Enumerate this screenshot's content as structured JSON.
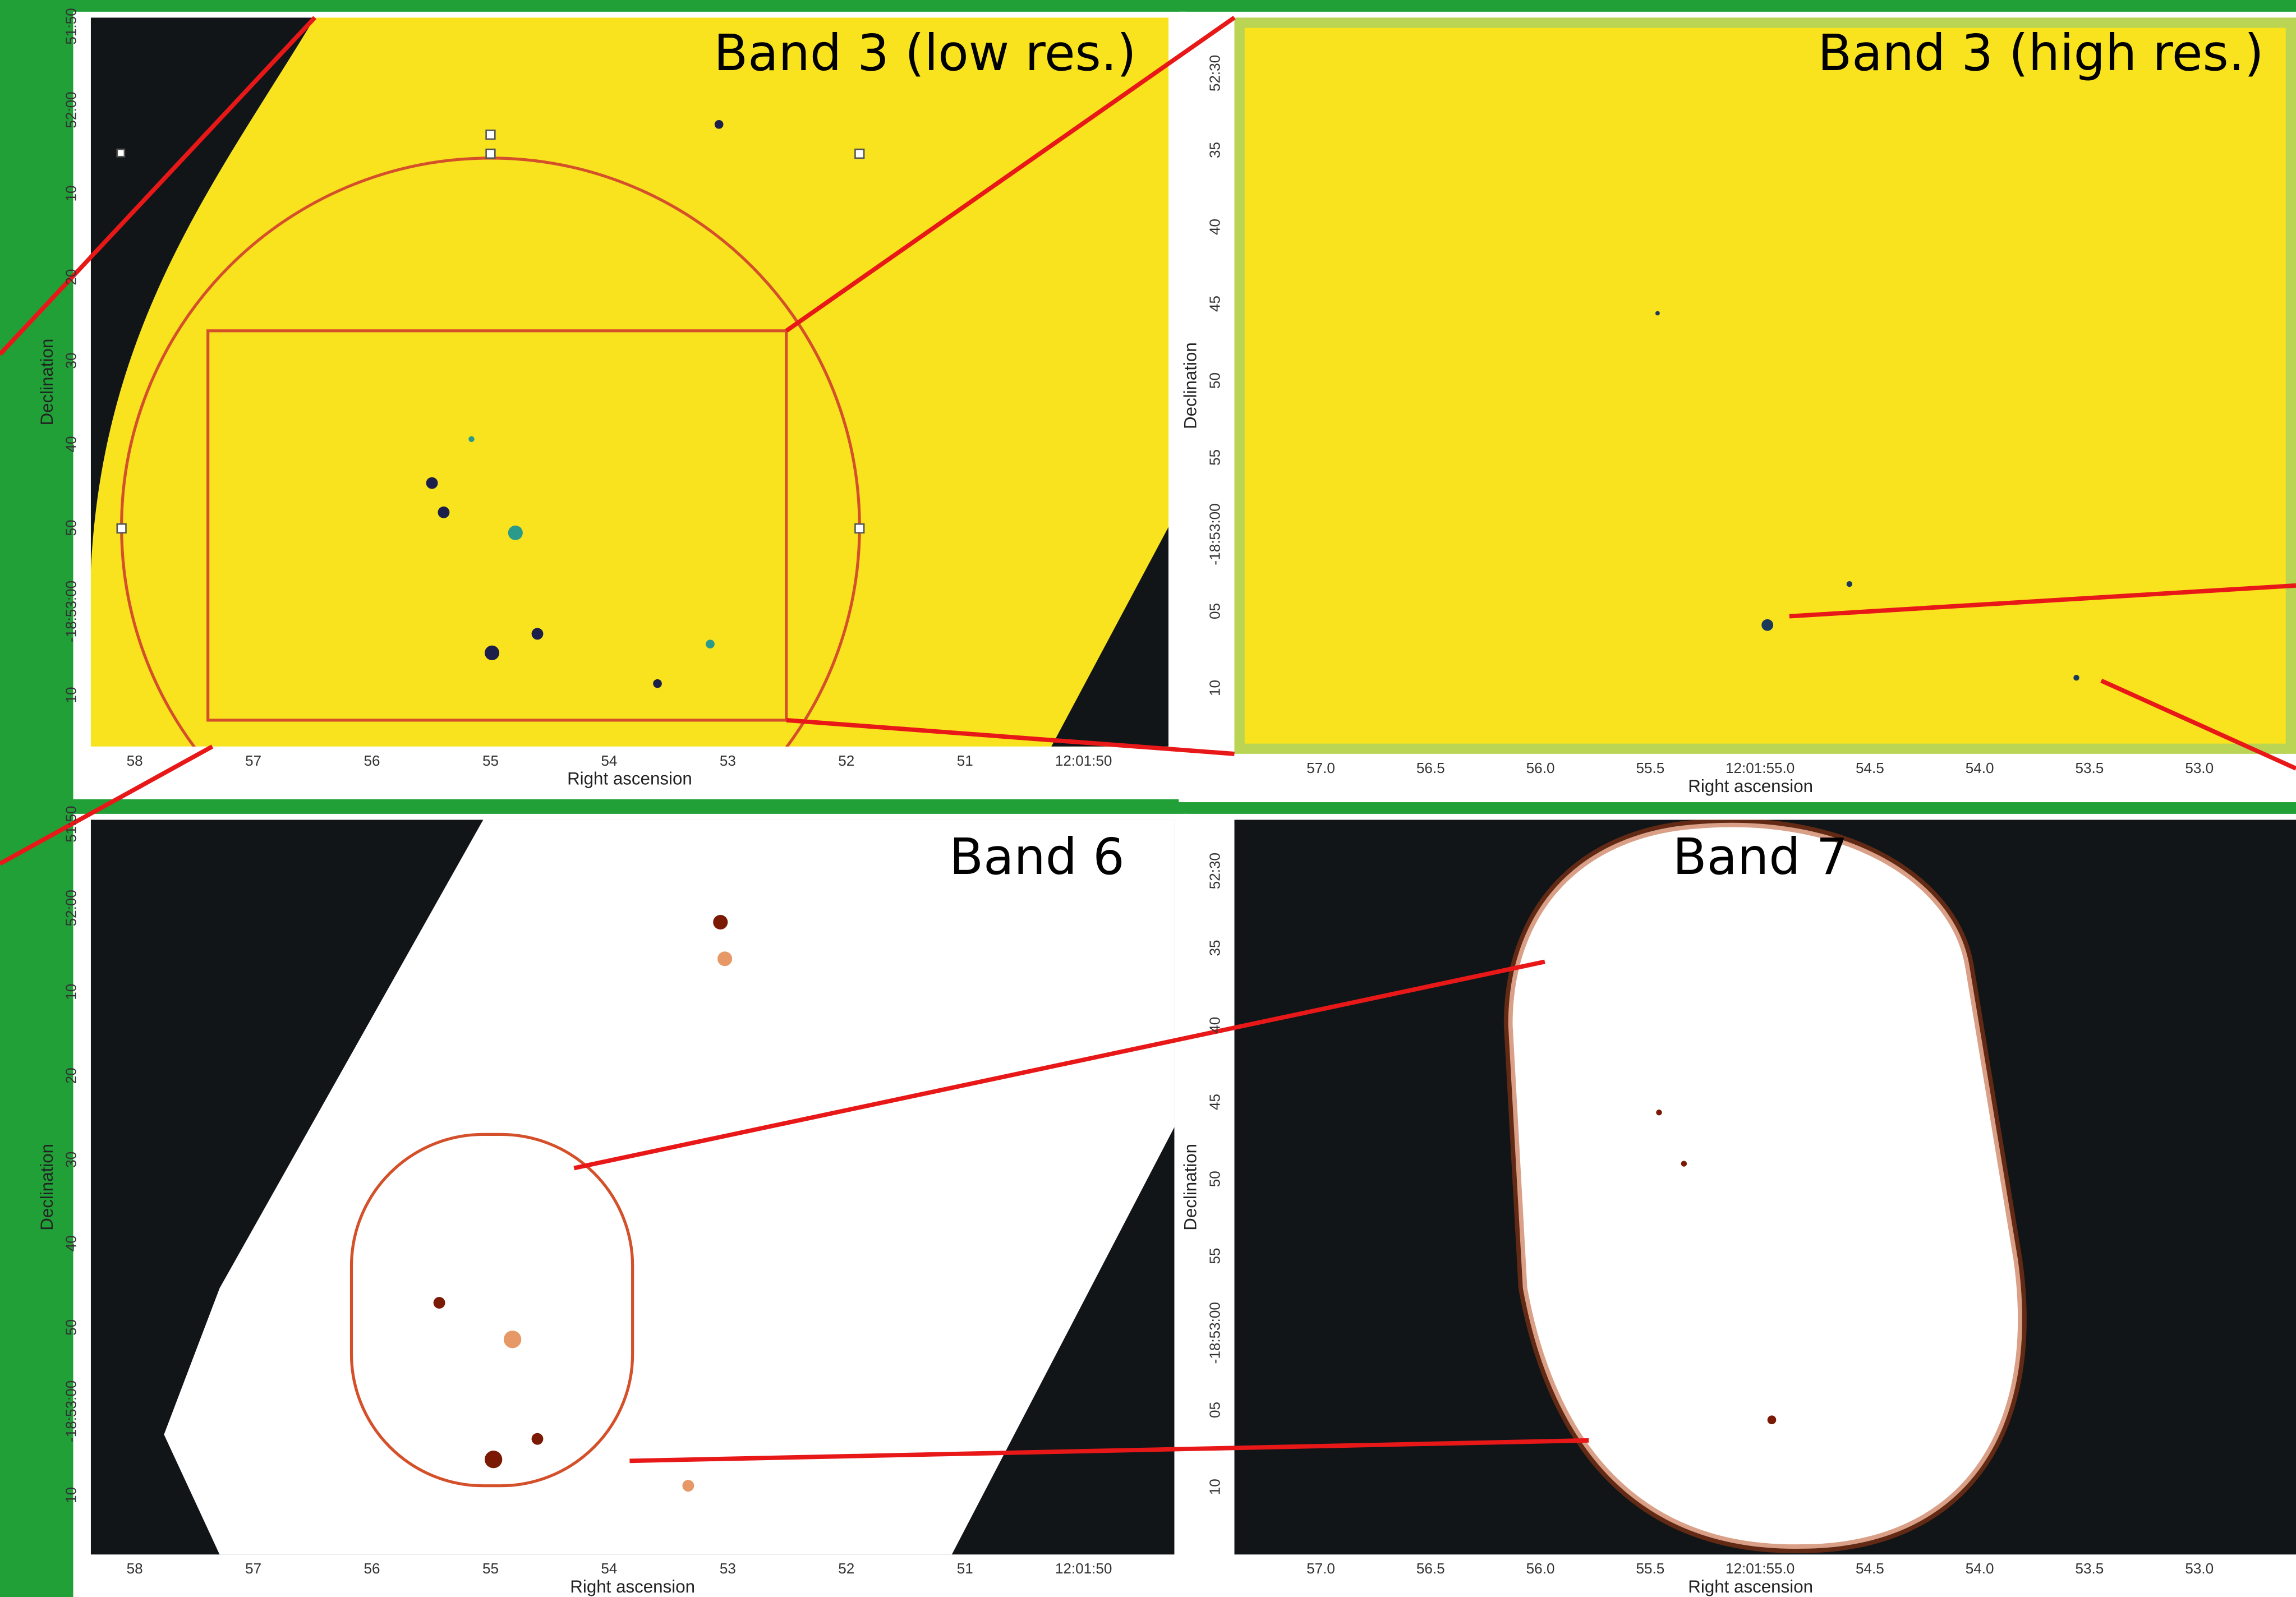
{
  "panels": [
    {
      "title": "Band 3 (low res.)",
      "x_label": "Right ascension",
      "y_label": "Declination",
      "x_ticks": [
        "58",
        "57",
        "56",
        "55",
        "54",
        "53",
        "52",
        "51",
        "12:01:50"
      ],
      "y_ticks": [
        "51:50",
        "52:00",
        "10",
        "20",
        "30",
        "40",
        "50",
        "-18:53:00",
        "10"
      ]
    },
    {
      "title": "Band 3 (high res.)",
      "x_label": "Right ascension",
      "y_label": "Declination",
      "x_ticks": [
        "57.0",
        "56.5",
        "56.0",
        "55.5",
        "12:01:55.0",
        "54.5",
        "54.0",
        "53.5",
        "53.0"
      ],
      "y_ticks": [
        "52:30",
        "35",
        "40",
        "45",
        "50",
        "55",
        "-18:53:00",
        "05",
        "10"
      ]
    },
    {
      "title": "Band 6",
      "x_label": "Right ascension",
      "y_label": "Declination",
      "x_ticks": [
        "58",
        "57",
        "56",
        "55",
        "54",
        "53",
        "52",
        "51",
        "12:01:50"
      ],
      "y_ticks": [
        "51:50",
        "52:00",
        "10",
        "20",
        "30",
        "40",
        "50",
        "-18:53:00",
        "10"
      ]
    },
    {
      "title": "Band 7",
      "x_label": "Right ascension",
      "y_label": "Declination",
      "x_ticks": [
        "57.0",
        "56.5",
        "56.0",
        "55.5",
        "12:01:55.0",
        "54.5",
        "54.0",
        "53.5",
        "53.0"
      ],
      "y_ticks": [
        "52:30",
        "35",
        "40",
        "45",
        "50",
        "55",
        "-18:53:00",
        "05",
        "10"
      ]
    }
  ]
}
